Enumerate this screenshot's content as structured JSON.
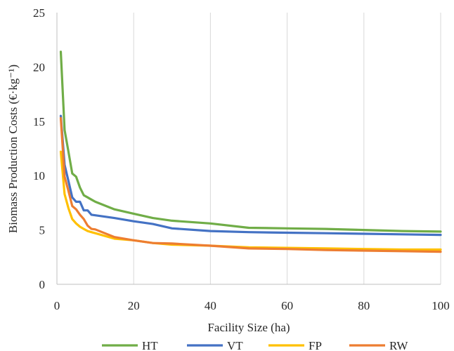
{
  "chart_data": {
    "type": "line",
    "title": "",
    "xlabel": "Facility Size (ha)",
    "ylabel": "Biomass Production Costs (€·kg⁻¹)",
    "xlim": [
      0,
      100
    ],
    "ylim": [
      0,
      25
    ],
    "x_ticks": [
      "0",
      "20",
      "40",
      "60",
      "80",
      "100"
    ],
    "y_ticks": [
      "0",
      "5",
      "10",
      "15",
      "20",
      "25"
    ],
    "grid": "vertical",
    "legend_position": "bottom",
    "series": [
      {
        "name": "HT",
        "color": "#70AD47",
        "x": [
          1,
          2,
          3,
          4,
          5,
          6,
          7,
          8,
          9,
          10,
          15,
          20,
          25,
          30,
          40,
          50,
          60,
          70,
          80,
          90,
          100
        ],
        "y": [
          21.4,
          14.2,
          12.2,
          10.2,
          9.9,
          8.9,
          8.2,
          8.0,
          7.8,
          7.6,
          6.9,
          6.5,
          6.1,
          5.85,
          5.6,
          5.2,
          5.15,
          5.1,
          5.0,
          4.9,
          4.85
        ]
      },
      {
        "name": "VT",
        "color": "#4472C4",
        "x": [
          1,
          2,
          3,
          4,
          5,
          6,
          7,
          8,
          9,
          10,
          15,
          20,
          25,
          30,
          40,
          50,
          60,
          70,
          80,
          90,
          100
        ],
        "y": [
          15.5,
          11.0,
          9.5,
          8.0,
          7.6,
          7.6,
          6.8,
          6.8,
          6.4,
          6.35,
          6.1,
          5.8,
          5.55,
          5.15,
          4.9,
          4.8,
          4.75,
          4.7,
          4.65,
          4.6,
          4.55
        ]
      },
      {
        "name": "FP",
        "color": "#FFC000",
        "x": [
          1,
          2,
          3,
          4,
          5,
          6,
          7,
          8,
          9,
          10,
          15,
          20,
          25,
          30,
          40,
          50,
          60,
          70,
          80,
          90,
          100
        ],
        "y": [
          12.2,
          8.3,
          7.0,
          6.0,
          5.6,
          5.3,
          5.1,
          4.9,
          4.8,
          4.7,
          4.2,
          4.05,
          3.8,
          3.65,
          3.55,
          3.4,
          3.35,
          3.3,
          3.25,
          3.2,
          3.2
        ]
      },
      {
        "name": "RW",
        "color": "#ED7D31",
        "x": [
          1,
          2,
          3,
          4,
          5,
          6,
          7,
          8,
          9,
          10,
          15,
          20,
          25,
          30,
          40,
          50,
          60,
          70,
          80,
          90,
          100
        ],
        "y": [
          15.3,
          9.9,
          8.6,
          7.2,
          6.9,
          6.4,
          6.0,
          5.4,
          5.1,
          5.05,
          4.35,
          4.05,
          3.8,
          3.75,
          3.55,
          3.3,
          3.25,
          3.15,
          3.1,
          3.05,
          3.0
        ]
      }
    ]
  }
}
